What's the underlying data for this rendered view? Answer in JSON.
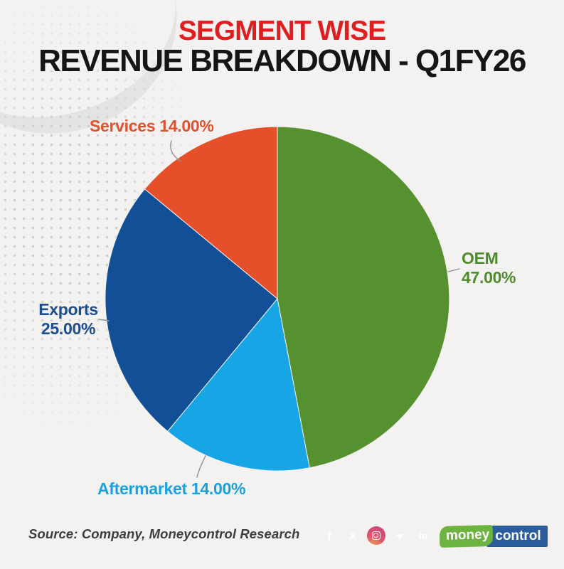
{
  "header": {
    "title_line1": "SEGMENT WISE",
    "title_line2": "REVENUE BREAKDOWN - Q1FY26"
  },
  "theme": {
    "page_background": "#f3f2f0",
    "title_accent_red": "#e01e20",
    "title_dark": "#151515"
  },
  "chart_data": {
    "type": "pie",
    "title": "SEGMENT WISE REVENUE BREAKDOWN - Q1FY26",
    "units": "percent",
    "start_angle": "12 o'clock",
    "direction": "clockwise",
    "center": [
      390,
      420
    ],
    "radius": 242,
    "slices": [
      {
        "label": "OEM",
        "value": 47.0,
        "pct_text": "47.00%",
        "color": "#55912f",
        "label_color": "#4e8b2d",
        "callout_line1": "OEM",
        "callout_line2": "47.00%"
      },
      {
        "label": "Aftermarket",
        "value": 14.0,
        "pct_text": "14.00%",
        "color": "#17a5e6",
        "label_color": "#1aa0dd",
        "callout_line1": "Aftermarket 14.00%",
        "callout_line2": ""
      },
      {
        "label": "Exports",
        "value": 25.0,
        "pct_text": "25.00%",
        "color": "#124f97",
        "label_color": "#1c4d8c",
        "callout_line1": "Exports",
        "callout_line2": "25.00%"
      },
      {
        "label": "Services",
        "value": 14.0,
        "pct_text": "14.00%",
        "color": "#e5502a",
        "label_color": "#e2512e",
        "callout_line1": "Services 14.00%",
        "callout_line2": ""
      }
    ]
  },
  "footer": {
    "source": "Source: Company, Moneycontrol Research",
    "social_icons": [
      {
        "name": "facebook",
        "glyph": "f",
        "color": "#4e61a8"
      },
      {
        "name": "x-twitter",
        "glyph": "X",
        "color": "#0c0c0c"
      },
      {
        "name": "instagram",
        "glyph": "",
        "color": "#d6446e"
      },
      {
        "name": "telegram",
        "glyph": "➤",
        "color": "#41a6e0"
      },
      {
        "name": "linkedin",
        "glyph": "in",
        "color": "#2e8fd0"
      }
    ],
    "logo": {
      "part1": "money",
      "part2": "control"
    }
  }
}
